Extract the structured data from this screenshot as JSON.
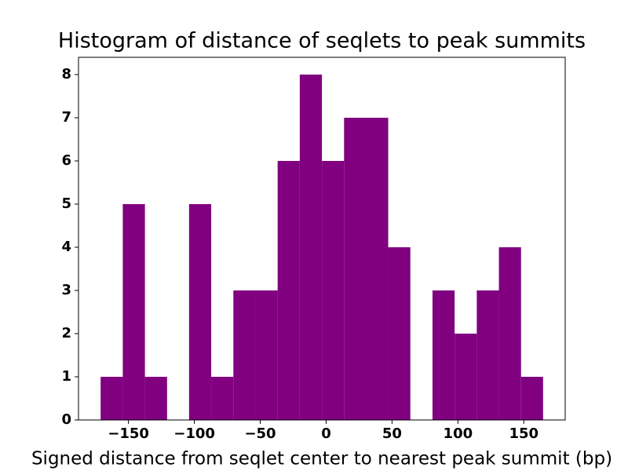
{
  "chart_data": {
    "type": "histogram",
    "title": "Histogram of distance of seqlets to peak summits",
    "x_label": "Signed distance from seqlet center to nearest peak summit (bp)",
    "color": "#800080",
    "bins": [
      -171.1,
      -154.3,
      -137.5,
      -120.7,
      -104.0,
      -87.2,
      -70.4,
      -53.6,
      -36.8,
      -20.0,
      -3.2,
      13.6,
      30.4,
      47.1,
      63.9,
      80.7,
      97.5,
      114.3,
      131.1,
      147.9,
      164.6
    ],
    "values": [
      1,
      5,
      1,
      0,
      5,
      1,
      3,
      3,
      6,
      8,
      6,
      7,
      7,
      4,
      0,
      3,
      2,
      3,
      4,
      1
    ],
    "xlim": [
      -187.9,
      181.4
    ],
    "ylim": [
      0,
      8.4
    ],
    "xticks": [
      {
        "value": -150,
        "label": "−150"
      },
      {
        "value": -100,
        "label": "−100"
      },
      {
        "value": -50,
        "label": "−50"
      },
      0,
      50,
      100,
      150
    ],
    "yticks": [
      0,
      1,
      2,
      3,
      4,
      5,
      6,
      7,
      8
    ]
  }
}
